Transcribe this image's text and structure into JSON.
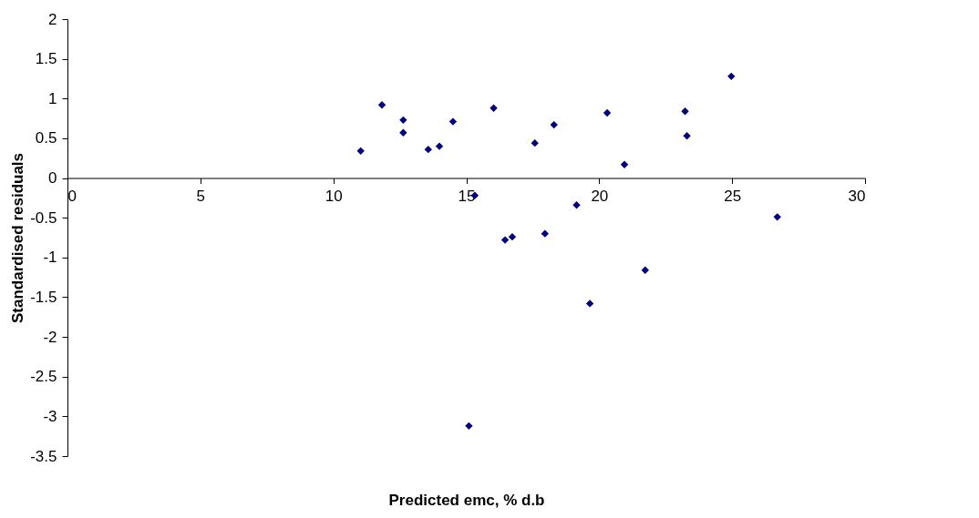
{
  "chart_data": {
    "type": "scatter",
    "xlabel": "Predicted emc, % d.b",
    "ylabel": "Standardised residuals",
    "x": [
      11.03,
      11.83,
      12.63,
      12.63,
      13.57,
      13.99,
      14.5,
      15.1,
      15.32,
      16.03,
      16.46,
      16.73,
      17.58,
      17.96,
      18.3,
      19.15,
      19.65,
      20.3,
      20.95,
      21.73,
      23.23,
      23.3,
      24.97,
      26.7
    ],
    "series": [
      {
        "color": "#000080",
        "values": [
          0.34,
          0.92,
          0.73,
          0.57,
          0.36,
          0.4,
          0.71,
          -3.12,
          -0.22,
          0.88,
          -0.78,
          -0.74,
          0.44,
          -0.7,
          0.67,
          -0.34,
          -1.58,
          0.82,
          0.17,
          -1.16,
          0.84,
          0.53,
          1.28,
          -0.49
        ]
      }
    ],
    "xlim": [
      0,
      30
    ],
    "xticks": [
      0,
      5,
      10,
      15,
      20,
      25,
      30
    ],
    "ylim": [
      -3.5,
      2
    ],
    "yticks": [
      -3.5,
      -3,
      -2.5,
      -2,
      -1.5,
      -1,
      -0.5,
      0,
      0.5,
      1,
      1.5,
      2
    ],
    "marker": "diamond",
    "grid": false
  }
}
